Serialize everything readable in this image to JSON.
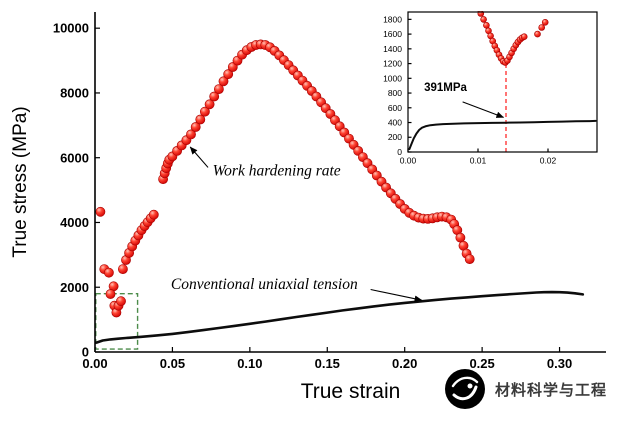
{
  "watermark": {
    "text": "材料科学与工程"
  },
  "chart_data": [
    {
      "id": "main",
      "type": "scatter",
      "xlabel": "True strain",
      "ylabel": "True stress (MPa)",
      "xlim": [
        0,
        0.33
      ],
      "ylim": [
        0,
        10500
      ],
      "xtick_values": [
        0,
        0.05,
        0.1,
        0.15,
        0.2,
        0.25,
        0.3
      ],
      "xtick_labels": [
        "0.00",
        "0.05",
        "0.10",
        "0.15",
        "0.20",
        "0.25",
        "0.30"
      ],
      "ytick_values": [
        0,
        2000,
        4000,
        6000,
        8000,
        10000
      ],
      "ytick_labels": [
        "0",
        "2000",
        "4000",
        "6000",
        "8000",
        "10000"
      ],
      "grid": false,
      "legend": "none",
      "zoom_box": {
        "x0": 0.0005,
        "x1": 0.0275,
        "y0": 90,
        "y1": 1800,
        "color": "#4c8c4a"
      },
      "annotations": [
        {
          "text": "Work hardening rate",
          "x": 0.076,
          "y": 5450,
          "anchor": "start",
          "arrow": {
            "from": [
              0.073,
              5700
            ],
            "to": [
              0.0615,
              6330
            ]
          }
        },
        {
          "text": "Conventional uniaxial tension",
          "x": 0.049,
          "y": 1950,
          "anchor": "start",
          "arrow": {
            "from": [
              0.178,
              1930
            ],
            "to": [
              0.211,
              1600
            ]
          }
        }
      ],
      "series": [
        {
          "name": "Conventional uniaxial tension",
          "type": "line",
          "color": "#0d0d0d",
          "line_width": 2.6,
          "points": [
            [
              0.001,
              290
            ],
            [
              0.005,
              355
            ],
            [
              0.01,
              390
            ],
            [
              0.015,
              412
            ],
            [
              0.02,
              432
            ],
            [
              0.03,
              470
            ],
            [
              0.04,
              512
            ],
            [
              0.05,
              560
            ],
            [
              0.06,
              615
            ],
            [
              0.07,
              676
            ],
            [
              0.08,
              740
            ],
            [
              0.09,
              806
            ],
            [
              0.1,
              872
            ],
            [
              0.11,
              940
            ],
            [
              0.12,
              1010
            ],
            [
              0.13,
              1080
            ],
            [
              0.14,
              1150
            ],
            [
              0.15,
              1218
            ],
            [
              0.16,
              1284
            ],
            [
              0.17,
              1348
            ],
            [
              0.18,
              1408
            ],
            [
              0.19,
              1464
            ],
            [
              0.2,
              1516
            ],
            [
              0.21,
              1564
            ],
            [
              0.22,
              1608
            ],
            [
              0.23,
              1648
            ],
            [
              0.24,
              1686
            ],
            [
              0.25,
              1722
            ],
            [
              0.26,
              1756
            ],
            [
              0.27,
              1790
            ],
            [
              0.28,
              1822
            ],
            [
              0.285,
              1836
            ],
            [
              0.29,
              1846
            ],
            [
              0.295,
              1850
            ],
            [
              0.3,
              1846
            ],
            [
              0.305,
              1834
            ],
            [
              0.31,
              1812
            ],
            [
              0.315,
              1780
            ]
          ]
        },
        {
          "name": "Work hardening rate",
          "type": "scatter",
          "color": "#ff1a1a",
          "edge_color": "#a80000",
          "points": [
            [
              0.0035,
              4330
            ],
            [
              0.006,
              2560
            ],
            [
              0.009,
              2450
            ],
            [
              0.012,
              2030
            ],
            [
              0.01,
              1790
            ],
            [
              0.0125,
              1430
            ],
            [
              0.0138,
              1220
            ],
            [
              0.0152,
              1430
            ],
            [
              0.0168,
              1570
            ],
            [
              0.018,
              2560
            ],
            [
              0.02,
              2840
            ],
            [
              0.022,
              3060
            ],
            [
              0.024,
              3260
            ],
            [
              0.026,
              3440
            ],
            [
              0.028,
              3600
            ],
            [
              0.03,
              3760
            ],
            [
              0.032,
              3890
            ],
            [
              0.034,
              4010
            ],
            [
              0.036,
              4130
            ],
            [
              0.038,
              4240
            ],
            [
              0.044,
              5340
            ],
            [
              0.045,
              5520
            ],
            [
              0.046,
              5680
            ],
            [
              0.047,
              5820
            ],
            [
              0.048,
              5940
            ],
            [
              0.05,
              6040
            ],
            [
              0.053,
              6210
            ],
            [
              0.056,
              6380
            ],
            [
              0.059,
              6540
            ],
            [
              0.062,
              6720
            ],
            [
              0.065,
              6950
            ],
            [
              0.068,
              7180
            ],
            [
              0.071,
              7420
            ],
            [
              0.074,
              7650
            ],
            [
              0.077,
              7890
            ],
            [
              0.08,
              8120
            ],
            [
              0.083,
              8360
            ],
            [
              0.086,
              8580
            ],
            [
              0.089,
              8800
            ],
            [
              0.092,
              9000
            ],
            [
              0.095,
              9180
            ],
            [
              0.098,
              9320
            ],
            [
              0.101,
              9420
            ],
            [
              0.104,
              9480
            ],
            [
              0.107,
              9500
            ],
            [
              0.11,
              9480
            ],
            [
              0.113,
              9410
            ],
            [
              0.116,
              9300
            ],
            [
              0.119,
              9160
            ],
            [
              0.122,
              9010
            ],
            [
              0.125,
              8860
            ],
            [
              0.128,
              8700
            ],
            [
              0.131,
              8540
            ],
            [
              0.134,
              8380
            ],
            [
              0.137,
              8220
            ],
            [
              0.14,
              8060
            ],
            [
              0.143,
              7890
            ],
            [
              0.146,
              7710
            ],
            [
              0.149,
              7530
            ],
            [
              0.152,
              7350
            ],
            [
              0.155,
              7160
            ],
            [
              0.158,
              6970
            ],
            [
              0.161,
              6780
            ],
            [
              0.164,
              6590
            ],
            [
              0.167,
              6400
            ],
            [
              0.17,
              6210
            ],
            [
              0.173,
              6020
            ],
            [
              0.176,
              5830
            ],
            [
              0.179,
              5640
            ],
            [
              0.182,
              5450
            ],
            [
              0.185,
              5260
            ],
            [
              0.188,
              5080
            ],
            [
              0.191,
              4900
            ],
            [
              0.194,
              4730
            ],
            [
              0.197,
              4570
            ],
            [
              0.2,
              4420
            ],
            [
              0.203,
              4300
            ],
            [
              0.206,
              4210
            ],
            [
              0.209,
              4150
            ],
            [
              0.212,
              4120
            ],
            [
              0.215,
              4110
            ],
            [
              0.218,
              4130
            ],
            [
              0.221,
              4160
            ],
            [
              0.224,
              4180
            ],
            [
              0.227,
              4160
            ],
            [
              0.23,
              4090
            ],
            [
              0.232,
              3950
            ],
            [
              0.234,
              3760
            ],
            [
              0.236,
              3530
            ],
            [
              0.238,
              3280
            ],
            [
              0.24,
              3040
            ],
            [
              0.242,
              2870
            ]
          ]
        }
      ]
    },
    {
      "id": "inset",
      "type": "scatter",
      "xlim": [
        0,
        0.027
      ],
      "ylim": [
        0,
        1900
      ],
      "xtick_values": [
        0,
        0.01,
        0.02
      ],
      "xtick_labels": [
        "0.00",
        "0.01",
        "0.02"
      ],
      "ytick_values": [
        0,
        200,
        400,
        600,
        800,
        1000,
        1200,
        1400,
        1600,
        1800
      ],
      "ytick_labels": [
        "0",
        "200",
        "400",
        "600",
        "800",
        "1000",
        "1200",
        "1400",
        "1600",
        "1800"
      ],
      "grid": false,
      "legend": "none",
      "vline": {
        "x": 0.014,
        "y0": 0,
        "y1": 1230,
        "color": "#ff2a2a"
      },
      "annotations": [
        {
          "text": "391MPa",
          "bold": true,
          "x": 0.0023,
          "y": 830,
          "anchor": "start",
          "arrow": {
            "from": [
              0.0078,
              680
            ],
            "to": [
              0.01365,
              470
            ]
          }
        }
      ],
      "series": [
        {
          "name": "Conventional uniaxial tension (zoom)",
          "type": "line",
          "color": "#0d0d0d",
          "line_width": 2,
          "points": [
            [
              0.0002,
              40
            ],
            [
              0.0005,
              110
            ],
            [
              0.0008,
              180
            ],
            [
              0.0012,
              250
            ],
            [
              0.0016,
              300
            ],
            [
              0.002,
              330
            ],
            [
              0.0026,
              352
            ],
            [
              0.0032,
              364
            ],
            [
              0.004,
              372
            ],
            [
              0.005,
              378
            ],
            [
              0.006,
              382
            ],
            [
              0.008,
              388
            ],
            [
              0.01,
              392
            ],
            [
              0.012,
              395
            ],
            [
              0.014,
              398
            ],
            [
              0.016,
              401
            ],
            [
              0.018,
              404
            ],
            [
              0.02,
              408
            ],
            [
              0.022,
              412
            ],
            [
              0.024,
              416
            ],
            [
              0.026,
              420
            ],
            [
              0.0268,
              422
            ]
          ]
        },
        {
          "name": "Work hardening rate (zoom)",
          "type": "scatter",
          "color": "#ff1a1a",
          "edge_color": "#a80000",
          "points": [
            [
              0.01,
              1955
            ],
            [
              0.0104,
              1880
            ],
            [
              0.0108,
              1800
            ],
            [
              0.0112,
              1720
            ],
            [
              0.0115,
              1645
            ],
            [
              0.0118,
              1575
            ],
            [
              0.0121,
              1505
            ],
            [
              0.0124,
              1440
            ],
            [
              0.0127,
              1380
            ],
            [
              0.013,
              1320
            ],
            [
              0.0133,
              1270
            ],
            [
              0.0136,
              1230
            ],
            [
              0.0139,
              1215
            ],
            [
              0.0142,
              1240
            ],
            [
              0.0145,
              1290
            ],
            [
              0.0148,
              1345
            ],
            [
              0.0151,
              1400
            ],
            [
              0.0154,
              1450
            ],
            [
              0.0157,
              1492
            ],
            [
              0.016,
              1525
            ],
            [
              0.0163,
              1550
            ],
            [
              0.0166,
              1565
            ],
            [
              0.0185,
              1600
            ],
            [
              0.0191,
              1690
            ],
            [
              0.0196,
              1760
            ]
          ]
        }
      ]
    }
  ]
}
